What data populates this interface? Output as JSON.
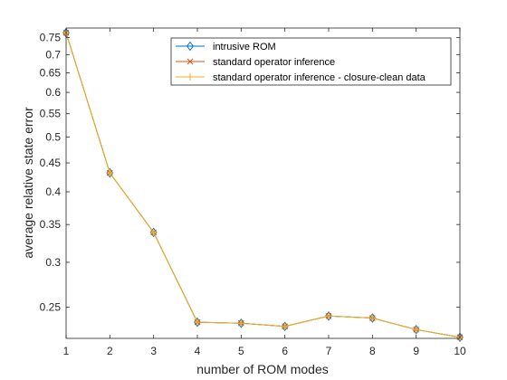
{
  "chart_data": {
    "type": "line",
    "xlabel": "number of ROM modes",
    "ylabel": "average relative state error",
    "x": [
      1,
      2,
      3,
      4,
      5,
      6,
      7,
      8,
      9,
      10
    ],
    "xlim": [
      1,
      10
    ],
    "ylim": [
      0.22,
      0.78
    ],
    "yscale": "log",
    "xticks": [
      1,
      2,
      3,
      4,
      5,
      6,
      7,
      8,
      9,
      10
    ],
    "yticks": [
      0.25,
      0.3,
      0.35,
      0.4,
      0.45,
      0.5,
      0.55,
      0.6,
      0.65,
      0.7,
      0.75
    ],
    "ytick_labels": [
      "0.25",
      "0.3",
      "0.35",
      "0.4",
      "0.45",
      "0.5",
      "0.55",
      "0.6",
      "0.65",
      "0.7",
      "0.75"
    ],
    "grid": false,
    "legend_position": "top-right",
    "series": [
      {
        "name": "intrusive ROM",
        "color": "#0072bd",
        "marker": "diamond",
        "values": [
          0.765,
          0.432,
          0.339,
          0.235,
          0.234,
          0.231,
          0.241,
          0.239,
          0.228,
          0.221
        ]
      },
      {
        "name": "standard operator inference",
        "color": "#d95319",
        "marker": "cross",
        "values": [
          0.765,
          0.432,
          0.339,
          0.235,
          0.234,
          0.231,
          0.241,
          0.239,
          0.228,
          0.221
        ]
      },
      {
        "name": "standard operator inference - closure-clean data",
        "color": "#edb120",
        "marker": "plus",
        "values": [
          0.765,
          0.432,
          0.339,
          0.235,
          0.234,
          0.231,
          0.241,
          0.239,
          0.228,
          0.221
        ]
      }
    ]
  }
}
